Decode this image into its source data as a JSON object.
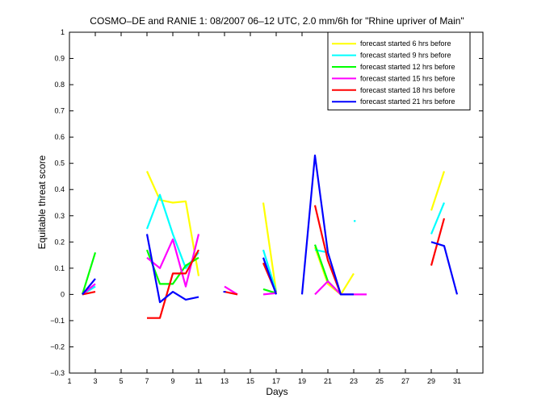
{
  "chart_data": {
    "type": "line",
    "title": "COSMO–DE and RANIE 1: 08/2007 06–12 UTC, 2.0 mm/6h for \"Rhine upriver of Main\"",
    "xlabel": "Days",
    "ylabel": "Equitable threat score",
    "xlim": [
      1,
      33
    ],
    "ylim": [
      -0.3,
      1
    ],
    "xticks": [
      1,
      3,
      5,
      7,
      9,
      11,
      13,
      15,
      17,
      19,
      21,
      23,
      25,
      27,
      29,
      31
    ],
    "yticks": [
      -0.3,
      -0.2,
      -0.1,
      0,
      0.1,
      0.2,
      0.3,
      0.4,
      0.5,
      0.6,
      0.7,
      0.8,
      0.9,
      1
    ],
    "ytick_labels": [
      "−0.3",
      "−0.2",
      "−0.1",
      "0",
      "0.1",
      "0.2",
      "0.3",
      "0.4",
      "0.5",
      "0.6",
      "0.7",
      "0.8",
      "0.9",
      "1"
    ],
    "legend_position": "top-right",
    "grid": false,
    "series": [
      {
        "name": "forecast started 6 hrs before",
        "color": "#ffff00",
        "segments": [
          [
            [
              7,
              0.47
            ],
            [
              8,
              0.36
            ],
            [
              9,
              0.35
            ],
            [
              10,
              0.355
            ],
            [
              11,
              0.07
            ]
          ],
          [
            [
              16,
              0.35
            ],
            [
              17,
              0.01
            ]
          ],
          [
            [
              20,
              0.18
            ],
            [
              21,
              0.04
            ],
            [
              22,
              0.0
            ],
            [
              23,
              0.08
            ]
          ],
          [
            [
              29,
              0.32
            ],
            [
              30,
              0.47
            ]
          ]
        ]
      },
      {
        "name": "forecast started 9 hrs before",
        "color": "#00ffff",
        "segments": [
          [
            [
              2,
              0.0
            ],
            [
              3,
              0.03
            ]
          ],
          [
            [
              7,
              0.25
            ],
            [
              8,
              0.38
            ],
            [
              9,
              0.23
            ],
            [
              10,
              0.1
            ],
            [
              11,
              0.16
            ]
          ],
          [
            [
              16,
              0.17
            ],
            [
              17,
              0.01
            ]
          ],
          [
            [
              20,
              0.17
            ],
            [
              21,
              0.16
            ]
          ],
          [
            [
              23,
              0.28
            ],
            [
              23.15,
              0.28
            ]
          ],
          [
            [
              29,
              0.23
            ],
            [
              30,
              0.35
            ]
          ]
        ]
      },
      {
        "name": "forecast started 12 hrs before",
        "color": "#00ff00",
        "segments": [
          [
            [
              2,
              0.0
            ],
            [
              3,
              0.16
            ]
          ],
          [
            [
              7,
              0.17
            ],
            [
              8,
              0.04
            ],
            [
              9,
              0.04
            ],
            [
              10,
              0.11
            ],
            [
              11,
              0.14
            ]
          ],
          [
            [
              16,
              0.02
            ],
            [
              17,
              0.005
            ]
          ],
          [
            [
              20,
              0.19
            ],
            [
              21,
              0.05
            ],
            [
              22,
              0.0
            ]
          ]
        ]
      },
      {
        "name": "forecast started 15 hrs before",
        "color": "#ff00ff",
        "segments": [
          [
            [
              2,
              0.0
            ],
            [
              3,
              0.04
            ]
          ],
          [
            [
              7,
              0.14
            ],
            [
              8,
              0.1
            ],
            [
              9,
              0.21
            ],
            [
              10,
              0.03
            ],
            [
              11,
              0.23
            ]
          ],
          [
            [
              13,
              0.03
            ],
            [
              14,
              0.0
            ]
          ],
          [
            [
              16,
              0.0
            ],
            [
              17,
              0.005
            ]
          ],
          [
            [
              20,
              0.0
            ],
            [
              21,
              0.05
            ],
            [
              22,
              0.0
            ],
            [
              23,
              0.0
            ],
            [
              24,
              0.0
            ]
          ]
        ]
      },
      {
        "name": "forecast started 18 hrs before",
        "color": "#ff0000",
        "segments": [
          [
            [
              2,
              0.0
            ],
            [
              3,
              0.01
            ]
          ],
          [
            [
              7,
              -0.09
            ],
            [
              8,
              -0.09
            ],
            [
              9,
              0.08
            ],
            [
              10,
              0.08
            ],
            [
              11,
              0.17
            ]
          ],
          [
            [
              13,
              0.01
            ],
            [
              14,
              0.0
            ]
          ],
          [
            [
              16,
              0.12
            ],
            [
              17,
              0.005
            ]
          ],
          [
            [
              20,
              0.34
            ],
            [
              21,
              0.13
            ],
            [
              22,
              0.0
            ]
          ],
          [
            [
              29,
              0.11
            ],
            [
              30,
              0.29
            ]
          ]
        ]
      },
      {
        "name": "forecast started 21 hrs before",
        "color": "#0000ff",
        "segments": [
          [
            [
              2,
              0.0
            ],
            [
              3,
              0.06
            ]
          ],
          [
            [
              7,
              0.23
            ],
            [
              8,
              -0.03
            ],
            [
              9,
              0.01
            ],
            [
              10,
              -0.02
            ],
            [
              11,
              -0.01
            ]
          ],
          [
            [
              13,
              0.01
            ]
          ],
          [
            [
              16,
              0.14
            ],
            [
              17,
              0.0
            ]
          ],
          [
            [
              19,
              0.0
            ],
            [
              20,
              0.53
            ],
            [
              21,
              0.16
            ],
            [
              22,
              0.0
            ],
            [
              23,
              0.0
            ]
          ],
          [
            [
              29,
              0.2
            ],
            [
              30,
              0.185
            ],
            [
              31,
              0.0
            ]
          ]
        ]
      }
    ]
  }
}
